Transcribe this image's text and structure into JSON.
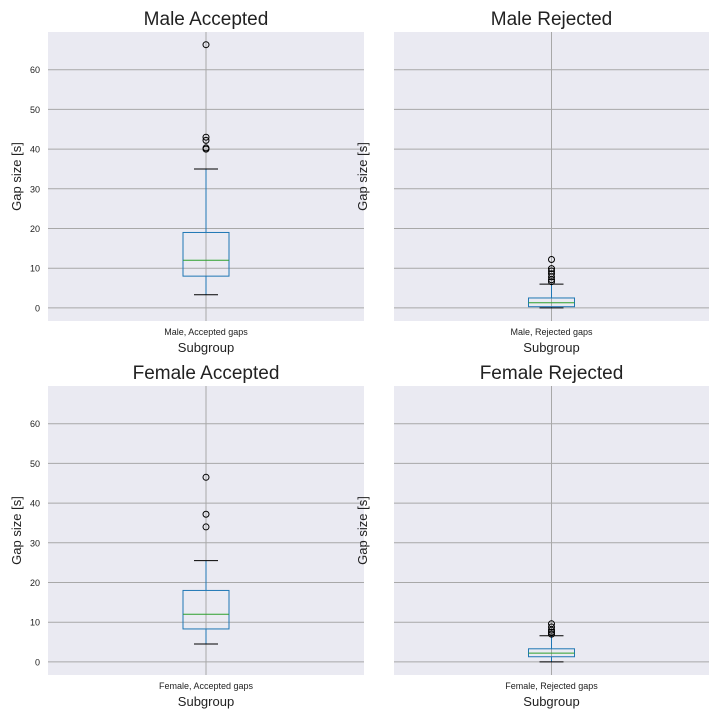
{
  "chart_data": [
    {
      "type": "box",
      "title": "Male Accepted",
      "xlabel": "Subgroup",
      "ylabel": "Gap size [s]",
      "category": "Male, Accepted gaps",
      "ylim": [
        -3.3,
        69.5
      ],
      "yticks": [
        0,
        10,
        20,
        30,
        40,
        50,
        60
      ],
      "show_ytick_labels": true,
      "grid": true,
      "box": {
        "whisker_low": 3.3,
        "q1": 8.0,
        "median": 12.0,
        "q3": 19.0,
        "whisker_high": 35.0
      },
      "outliers": [
        40.0,
        40.3,
        42.2,
        43.0,
        66.3
      ]
    },
    {
      "type": "box",
      "title": "Male Rejected",
      "xlabel": "Subgroup",
      "ylabel": "Gap size [s]",
      "category": "Male, Rejected gaps",
      "ylim": [
        -3.3,
        69.5
      ],
      "yticks": [
        0,
        10,
        20,
        30,
        40,
        50,
        60
      ],
      "show_ytick_labels": false,
      "grid": true,
      "box": {
        "whisker_low": 0.0,
        "q1": 0.3,
        "median": 1.3,
        "q3": 2.5,
        "whisker_high": 6.0
      },
      "outliers": [
        6.6,
        7.1,
        7.8,
        8.6,
        9.3,
        9.9,
        12.2
      ]
    },
    {
      "type": "box",
      "title": "Female Accepted",
      "xlabel": "Subgroup",
      "ylabel": "Gap size [s]",
      "category": "Female, Accepted gaps",
      "ylim": [
        -3.3,
        69.5
      ],
      "yticks": [
        0,
        10,
        20,
        30,
        40,
        50,
        60
      ],
      "show_ytick_labels": true,
      "grid": true,
      "box": {
        "whisker_low": 4.5,
        "q1": 8.3,
        "median": 12.0,
        "q3": 18.0,
        "whisker_high": 25.5
      },
      "outliers": [
        34.0,
        37.2,
        46.5
      ]
    },
    {
      "type": "box",
      "title": "Female Rejected",
      "xlabel": "Subgroup",
      "ylabel": "Gap size [s]",
      "category": "Female, Rejected gaps",
      "ylim": [
        -3.3,
        69.5
      ],
      "yticks": [
        0,
        10,
        20,
        30,
        40,
        50,
        60
      ],
      "show_ytick_labels": false,
      "grid": true,
      "box": {
        "whisker_low": 0.0,
        "q1": 1.3,
        "median": 2.2,
        "q3": 3.3,
        "whisker_high": 6.6
      },
      "outliers": [
        7.0,
        7.5,
        8.0,
        8.8,
        9.6
      ]
    }
  ],
  "colors": {
    "axes_background": "#eaeaf2",
    "grid": "#a8a8a8",
    "box": "#1f77b4",
    "median": "#2ca02c",
    "cap": "#000000",
    "flier": "#000000"
  }
}
